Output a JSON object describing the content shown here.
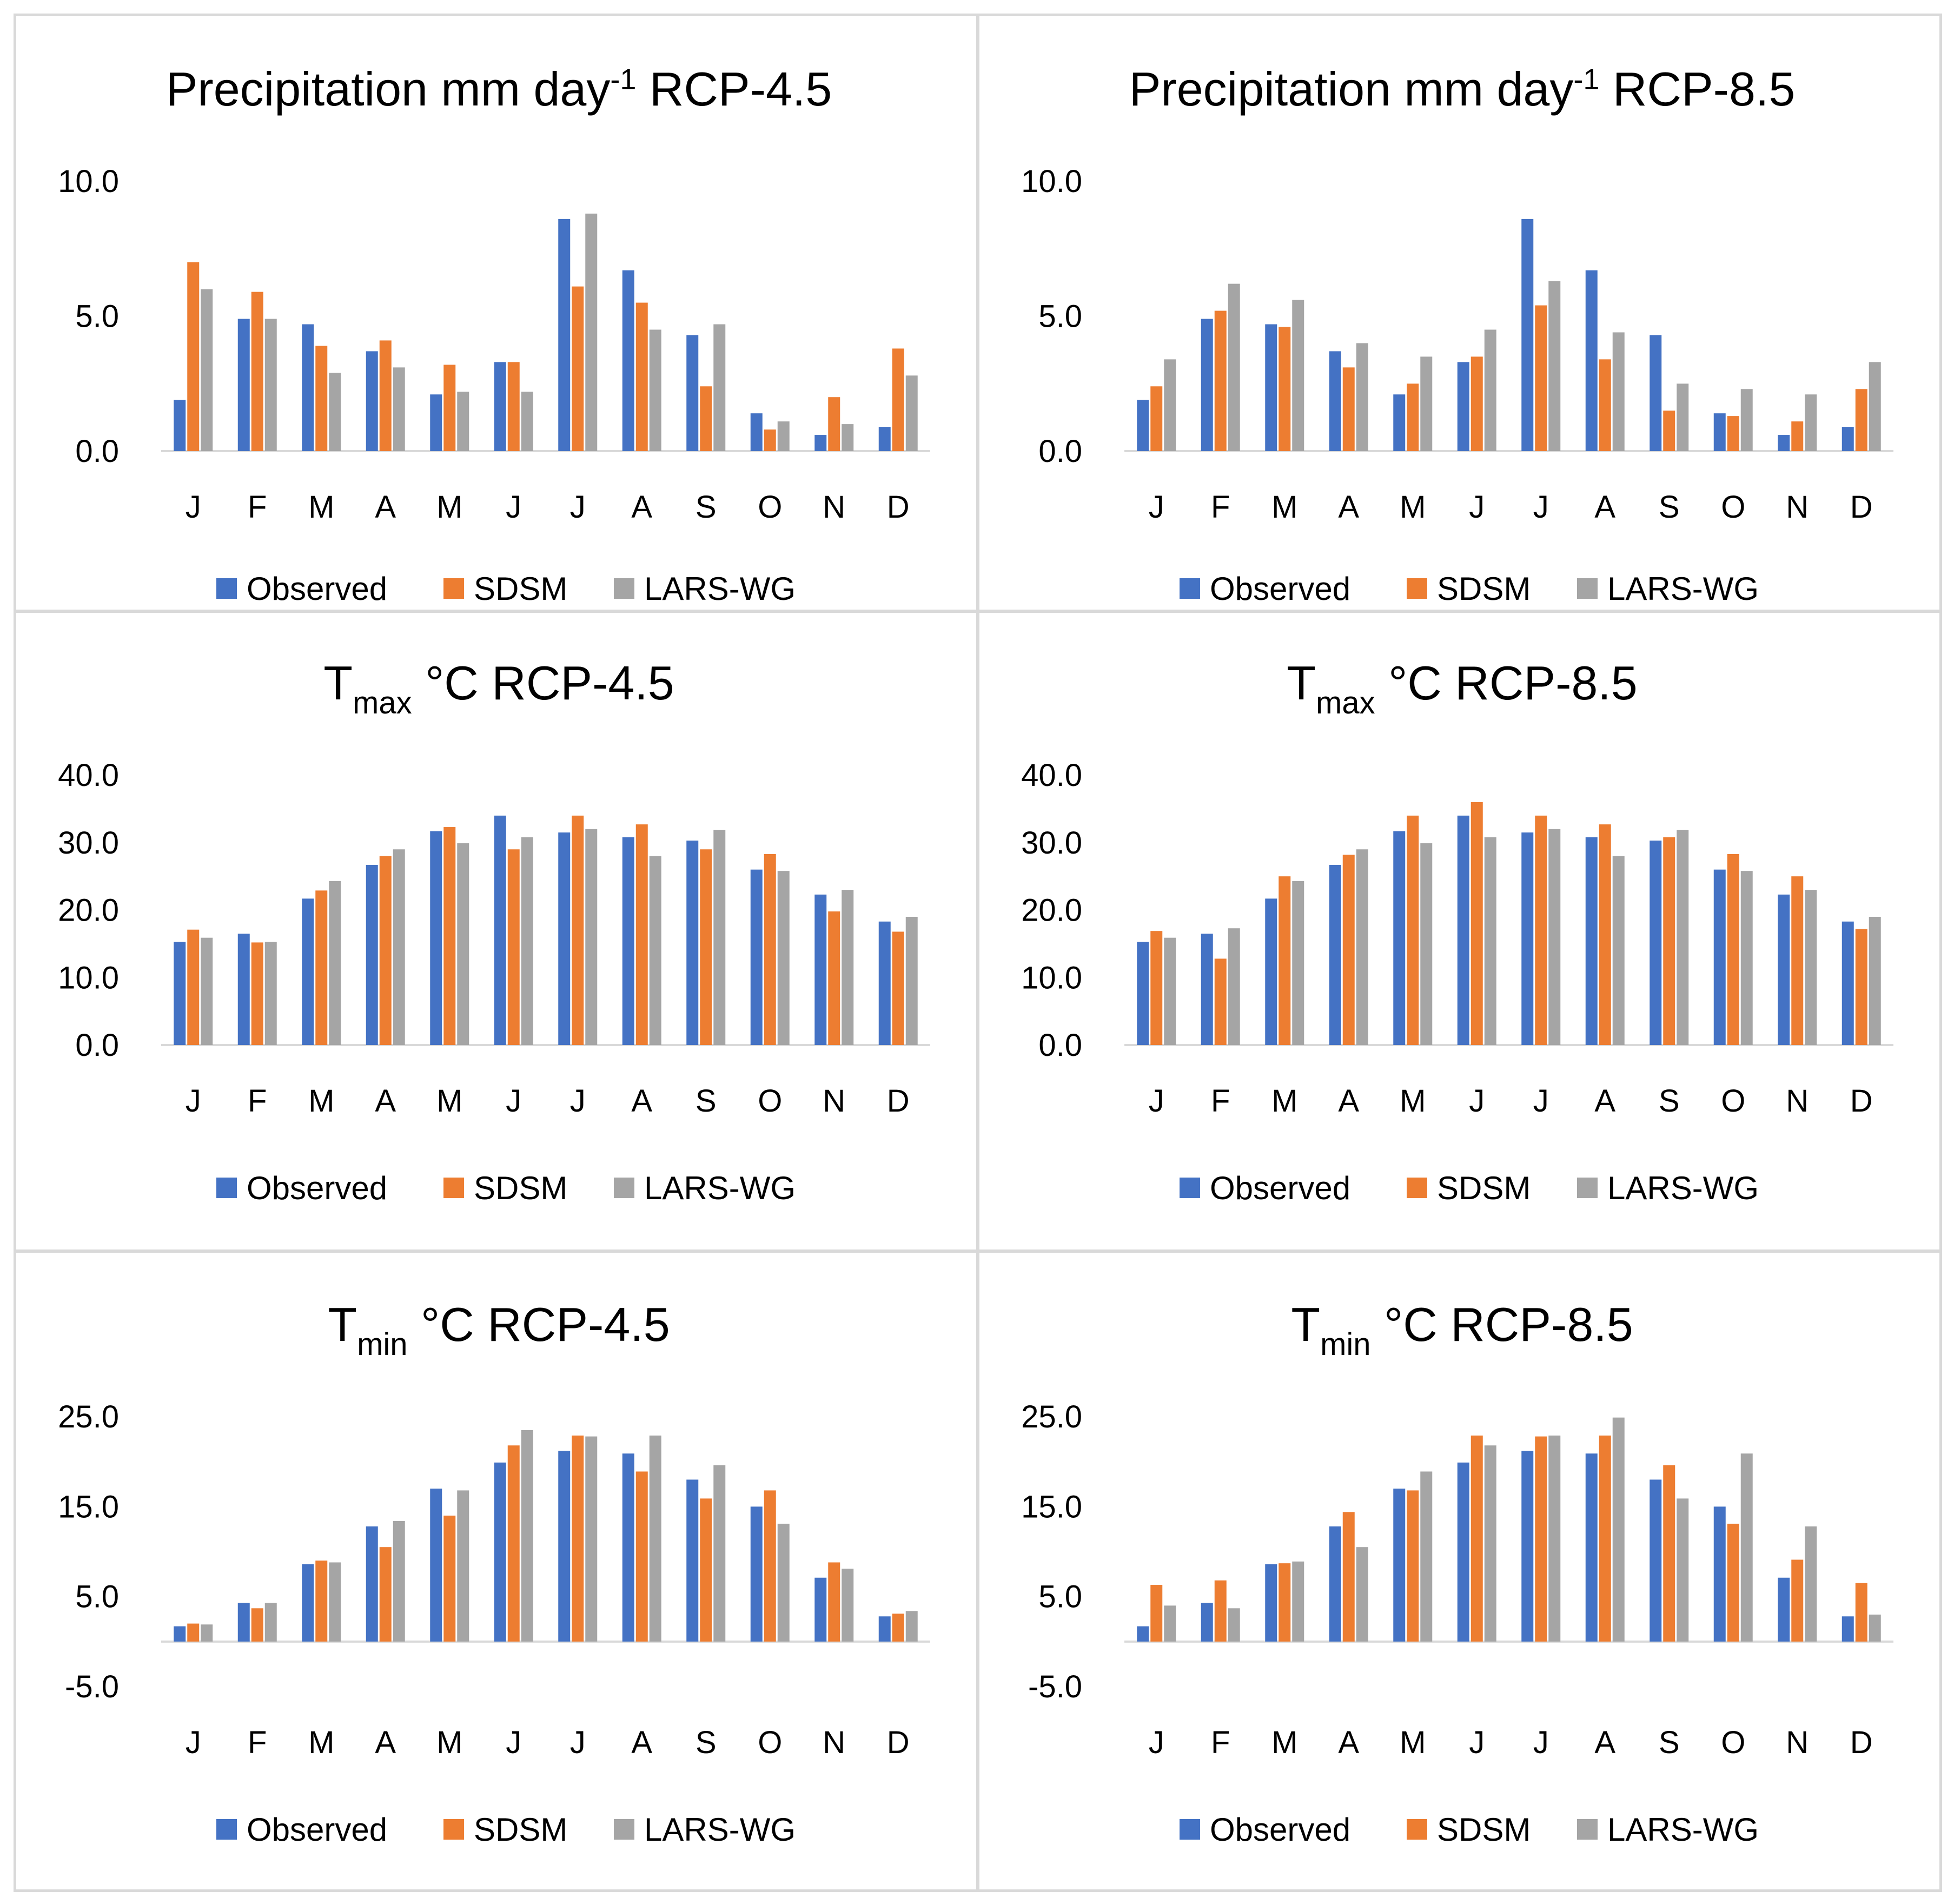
{
  "months": [
    "J",
    "F",
    "M",
    "A",
    "M",
    "J",
    "J",
    "A",
    "S",
    "O",
    "N",
    "D"
  ],
  "colors": {
    "Observed": "#4472C4",
    "SDSM": "#ED7D31",
    "LARS-WG": "#A5A5A5",
    "axis": "#D9D9D9",
    "text": "#000000"
  },
  "chart_data": [
    {
      "type": "bar",
      "title": {
        "main": "Precipitation mm day",
        "sup": "-1",
        "sub": "",
        "rest": " RCP-4.5"
      },
      "categories": [
        "J",
        "F",
        "M",
        "A",
        "M",
        "J",
        "J",
        "A",
        "S",
        "O",
        "N",
        "D"
      ],
      "ylim": [
        0,
        10
      ],
      "yticks": [
        "0.0",
        "5.0",
        "10.0"
      ],
      "series": [
        {
          "name": "Observed",
          "values": [
            1.9,
            4.9,
            4.7,
            3.7,
            2.1,
            3.3,
            8.6,
            6.7,
            4.3,
            1.4,
            0.6,
            0.9
          ]
        },
        {
          "name": "SDSM",
          "values": [
            7.0,
            5.9,
            3.9,
            4.1,
            3.2,
            3.3,
            6.1,
            5.5,
            2.4,
            0.8,
            2.0,
            3.8
          ]
        },
        {
          "name": "LARS-WG",
          "values": [
            6.0,
            4.9,
            2.9,
            3.1,
            2.2,
            2.2,
            8.8,
            4.5,
            4.7,
            1.1,
            1.0,
            2.8
          ]
        }
      ],
      "legend": [
        "Observed",
        "SDSM",
        "LARS-WG"
      ]
    },
    {
      "type": "bar",
      "title": {
        "main": "Precipitation mm day",
        "sup": "-1",
        "sub": "",
        "rest": " RCP-8.5"
      },
      "categories": [
        "J",
        "F",
        "M",
        "A",
        "M",
        "J",
        "J",
        "A",
        "S",
        "O",
        "N",
        "D"
      ],
      "ylim": [
        0,
        10
      ],
      "yticks": [
        "0.0",
        "5.0",
        "10.0"
      ],
      "series": [
        {
          "name": "Observed",
          "values": [
            1.9,
            4.9,
            4.7,
            3.7,
            2.1,
            3.3,
            8.6,
            6.7,
            4.3,
            1.4,
            0.6,
            0.9
          ]
        },
        {
          "name": "SDSM",
          "values": [
            2.4,
            5.2,
            4.6,
            3.1,
            2.5,
            3.5,
            5.4,
            3.4,
            1.5,
            1.3,
            1.1,
            2.3
          ]
        },
        {
          "name": "LARS-WG",
          "values": [
            3.4,
            6.2,
            5.6,
            4.0,
            3.5,
            4.5,
            6.3,
            4.4,
            2.5,
            2.3,
            2.1,
            3.3
          ]
        }
      ],
      "legend": [
        "Observed",
        "SDSM",
        "LARS-WG"
      ]
    },
    {
      "type": "bar",
      "title": {
        "main": "T",
        "sup": "",
        "sub": "max",
        "rest": " °C RCP-4.5"
      },
      "categories": [
        "J",
        "F",
        "M",
        "A",
        "M",
        "J",
        "J",
        "A",
        "S",
        "O",
        "N",
        "D"
      ],
      "ylim": [
        0,
        40
      ],
      "yticks": [
        "0.0",
        "10.0",
        "20.0",
        "30.0",
        "40.0"
      ],
      "series": [
        {
          "name": "Observed",
          "values": [
            15.3,
            16.5,
            21.7,
            26.7,
            31.7,
            34.0,
            31.5,
            30.8,
            30.3,
            26.0,
            22.3,
            18.3
          ]
        },
        {
          "name": "SDSM",
          "values": [
            17.1,
            15.2,
            22.9,
            28.0,
            32.3,
            29.0,
            34.0,
            32.7,
            29.0,
            28.3,
            19.8,
            16.8
          ]
        },
        {
          "name": "LARS-WG",
          "values": [
            15.9,
            15.3,
            24.3,
            29.0,
            29.9,
            30.8,
            32.0,
            28.0,
            31.9,
            25.8,
            23.0,
            19.0
          ]
        }
      ],
      "legend": [
        "Observed",
        "SDSM",
        "LARS-WG"
      ]
    },
    {
      "type": "bar",
      "title": {
        "main": "T",
        "sup": "",
        "sub": "max",
        "rest": " °C RCP-8.5"
      },
      "categories": [
        "J",
        "F",
        "M",
        "A",
        "M",
        "J",
        "J",
        "A",
        "S",
        "O",
        "N",
        "D"
      ],
      "ylim": [
        0,
        40
      ],
      "yticks": [
        "0.0",
        "10.0",
        "20.0",
        "30.0",
        "40.0"
      ],
      "series": [
        {
          "name": "Observed",
          "values": [
            15.3,
            16.5,
            21.7,
            26.7,
            31.7,
            34.0,
            31.5,
            30.8,
            30.3,
            26.0,
            22.3,
            18.3
          ]
        },
        {
          "name": "SDSM",
          "values": [
            16.9,
            12.8,
            25.0,
            28.2,
            34.0,
            36.0,
            34.0,
            32.7,
            30.8,
            28.3,
            25.0,
            17.2
          ]
        },
        {
          "name": "LARS-WG",
          "values": [
            15.9,
            17.3,
            24.3,
            29.0,
            29.9,
            30.8,
            32.0,
            28.0,
            31.9,
            25.8,
            23.0,
            19.0
          ]
        }
      ],
      "legend": [
        "Observed",
        "SDSM",
        "LARS-WG"
      ]
    },
    {
      "type": "bar",
      "title": {
        "main": "T",
        "sup": "",
        "sub": "min",
        "rest": " °C RCP-4.5"
      },
      "categories": [
        "J",
        "F",
        "M",
        "A",
        "M",
        "J",
        "J",
        "A",
        "S",
        "O",
        "N",
        "D"
      ],
      "ylim": [
        -5,
        25
      ],
      "yticks": [
        "-5.0",
        "5.0",
        "15.0",
        "25.0"
      ],
      "series": [
        {
          "name": "Observed",
          "values": [
            1.7,
            4.3,
            8.6,
            12.8,
            17.0,
            19.9,
            21.2,
            20.9,
            18.0,
            15.0,
            7.1,
            2.8
          ]
        },
        {
          "name": "SDSM",
          "values": [
            2.0,
            3.7,
            9.0,
            10.5,
            14.0,
            21.8,
            22.9,
            18.9,
            15.9,
            16.8,
            8.8,
            3.1
          ]
        },
        {
          "name": "LARS-WG",
          "values": [
            1.9,
            4.3,
            8.8,
            13.4,
            16.8,
            23.5,
            22.8,
            22.9,
            19.6,
            13.1,
            8.1,
            3.4
          ]
        }
      ],
      "legend": [
        "Observed",
        "SDSM",
        "LARS-WG"
      ]
    },
    {
      "type": "bar",
      "title": {
        "main": "T",
        "sup": "",
        "sub": "min",
        "rest": " °C RCP-8.5"
      },
      "categories": [
        "J",
        "F",
        "M",
        "A",
        "M",
        "J",
        "J",
        "A",
        "S",
        "O",
        "N",
        "D"
      ],
      "ylim": [
        -5,
        25
      ],
      "yticks": [
        "-5.0",
        "5.0",
        "15.0",
        "25.0"
      ],
      "series": [
        {
          "name": "Observed",
          "values": [
            1.7,
            4.3,
            8.6,
            12.8,
            17.0,
            19.9,
            21.2,
            20.9,
            18.0,
            15.0,
            7.1,
            2.8
          ]
        },
        {
          "name": "SDSM",
          "values": [
            6.3,
            6.8,
            8.7,
            14.4,
            16.8,
            22.9,
            22.8,
            22.9,
            19.6,
            13.1,
            9.1,
            6.5
          ]
        },
        {
          "name": "LARS-WG",
          "values": [
            4.0,
            3.7,
            8.9,
            10.5,
            18.9,
            21.8,
            22.9,
            24.9,
            15.9,
            20.9,
            12.8,
            3.0
          ]
        }
      ],
      "legend": [
        "Observed",
        "SDSM",
        "LARS-WG"
      ]
    }
  ]
}
